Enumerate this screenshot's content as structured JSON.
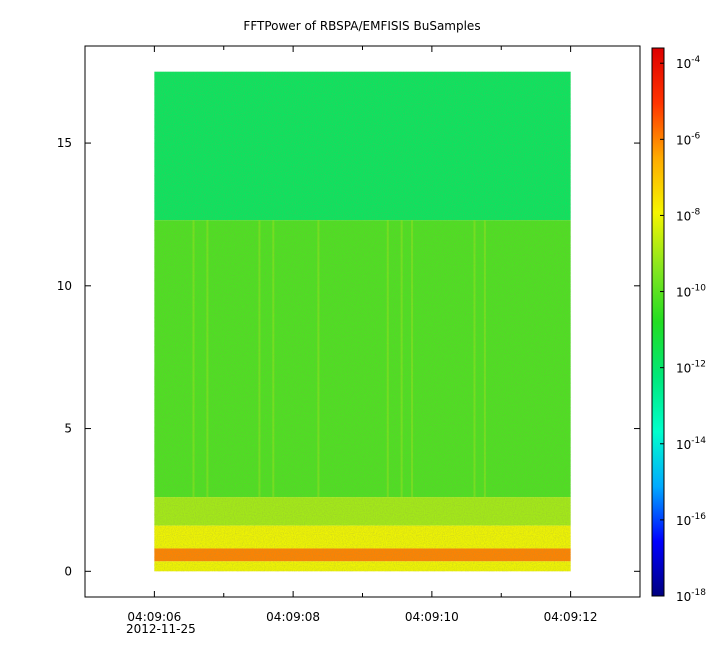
{
  "chart_data": {
    "type": "heatmap",
    "title": "FFTPower of RBSPA/EMFISIS  BuSamples",
    "xlabel": "",
    "ylabel": "",
    "x_date": "2012-11-25",
    "x_ticks": [
      "04:09:06",
      "04:09:08",
      "04:09:10",
      "04:09:12"
    ],
    "x_tick_values": [
      6,
      8,
      10,
      12
    ],
    "x_minor_ticks": [
      7,
      9,
      11,
      13
    ],
    "xlim": [
      5.0,
      13.0
    ],
    "data_xlim": [
      6.0,
      12.0
    ],
    "y_ticks": [
      0,
      5,
      10,
      15
    ],
    "ylim": [
      -0.9,
      18.4
    ],
    "data_ylim": [
      0,
      17.5
    ],
    "colorbar": {
      "scale": "log",
      "range": [
        -18,
        -3.6
      ],
      "ticks": [
        {
          "base": "10",
          "exp": "-4",
          "value": -4
        },
        {
          "base": "10",
          "exp": "-6",
          "value": -6
        },
        {
          "base": "10",
          "exp": "-8",
          "value": -8
        },
        {
          "base": "10",
          "exp": "-10",
          "value": -10
        },
        {
          "base": "10",
          "exp": "-12",
          "value": -12
        },
        {
          "base": "10",
          "exp": "-14",
          "value": -14
        },
        {
          "base": "10",
          "exp": "-16",
          "value": -16
        },
        {
          "base": "10",
          "exp": "-18",
          "value": -18
        }
      ],
      "colormap": [
        "#00007f",
        "#0000ff",
        "#00aaff",
        "#00ffcc",
        "#00e87a",
        "#22dd22",
        "#88e61f",
        "#f5f500",
        "#ffaa00",
        "#ff3300",
        "#dd0000"
      ]
    },
    "bands": [
      {
        "y_from": 12.3,
        "y_to": 17.5,
        "log_power": -11.8
      },
      {
        "y_from": 2.6,
        "y_to": 12.3,
        "log_power": -10.2
      },
      {
        "y_from": 1.6,
        "y_to": 2.6,
        "log_power": -9.0
      },
      {
        "y_from": 0.8,
        "y_to": 1.6,
        "log_power": -8.0
      },
      {
        "y_from": 0.35,
        "y_to": 0.8,
        "log_power": -6.0
      },
      {
        "y_from": 0.0,
        "y_to": 0.35,
        "log_power": -8.0
      }
    ],
    "streaks": [
      6.55,
      6.75,
      7.5,
      7.7,
      8.35,
      9.35,
      9.55,
      9.7,
      10.6,
      10.75
    ]
  }
}
